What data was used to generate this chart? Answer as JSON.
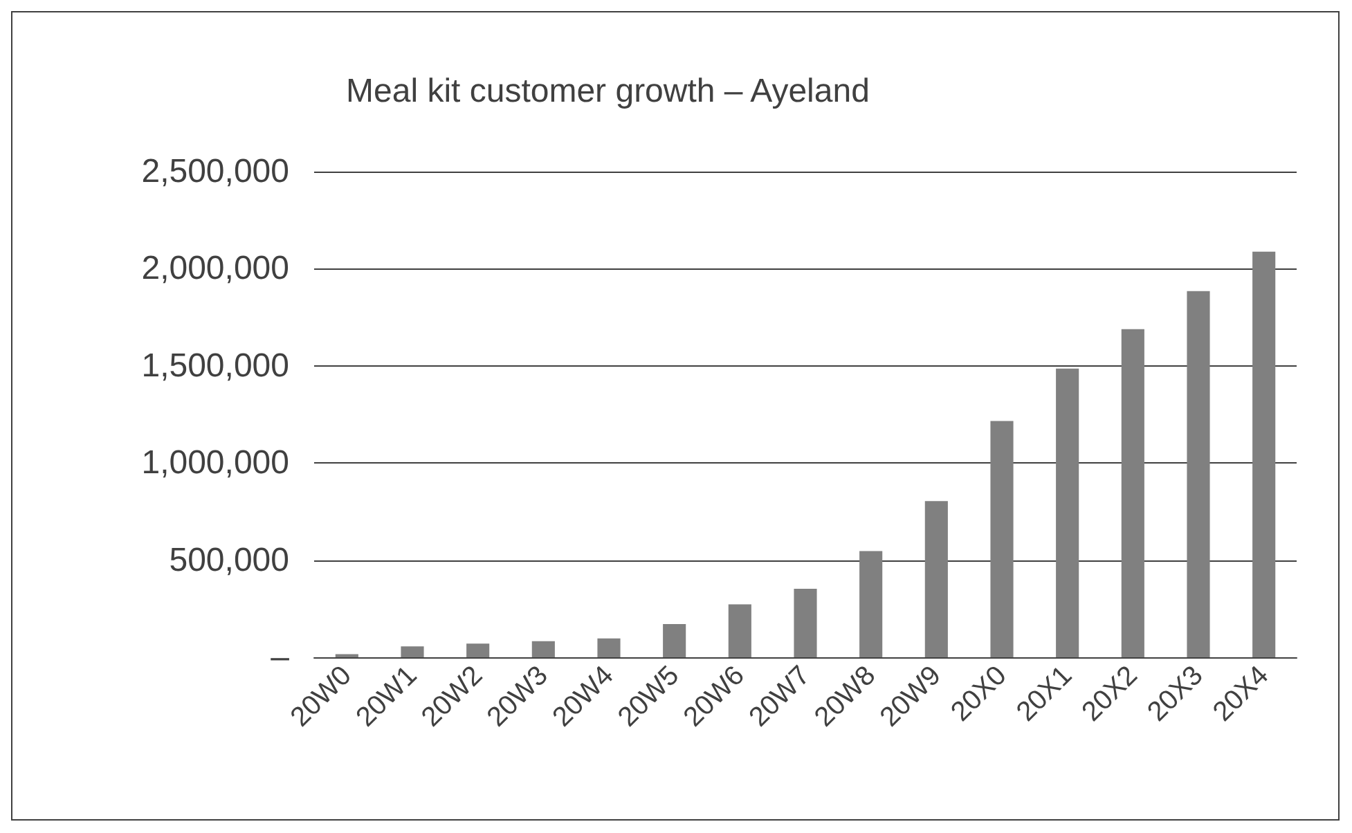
{
  "chart_data": {
    "type": "bar",
    "title": "Meal kit customer growth – Ayeland",
    "categories": [
      "20W0",
      "20W1",
      "20W2",
      "20W3",
      "20W4",
      "20W5",
      "20W6",
      "20W7",
      "20W8",
      "20W9",
      "20X0",
      "20X1",
      "20X2",
      "20X3",
      "20X4"
    ],
    "values": [
      16000,
      56000,
      70000,
      83000,
      97000,
      171000,
      272000,
      353000,
      547000,
      804000,
      1216000,
      1486000,
      1689000,
      1885000,
      2088000
    ],
    "color": "#808080",
    "ylim": [
      0,
      2500000
    ],
    "yticks": [
      {
        "value": 0,
        "label": "–"
      },
      {
        "value": 500000,
        "label": "500,000"
      },
      {
        "value": 1000000,
        "label": "1,000,000"
      },
      {
        "value": 1500000,
        "label": "1,500,000"
      },
      {
        "value": 2000000,
        "label": "2,000,000"
      },
      {
        "value": 2500000,
        "label": "2,500,000"
      }
    ],
    "grid": true
  }
}
